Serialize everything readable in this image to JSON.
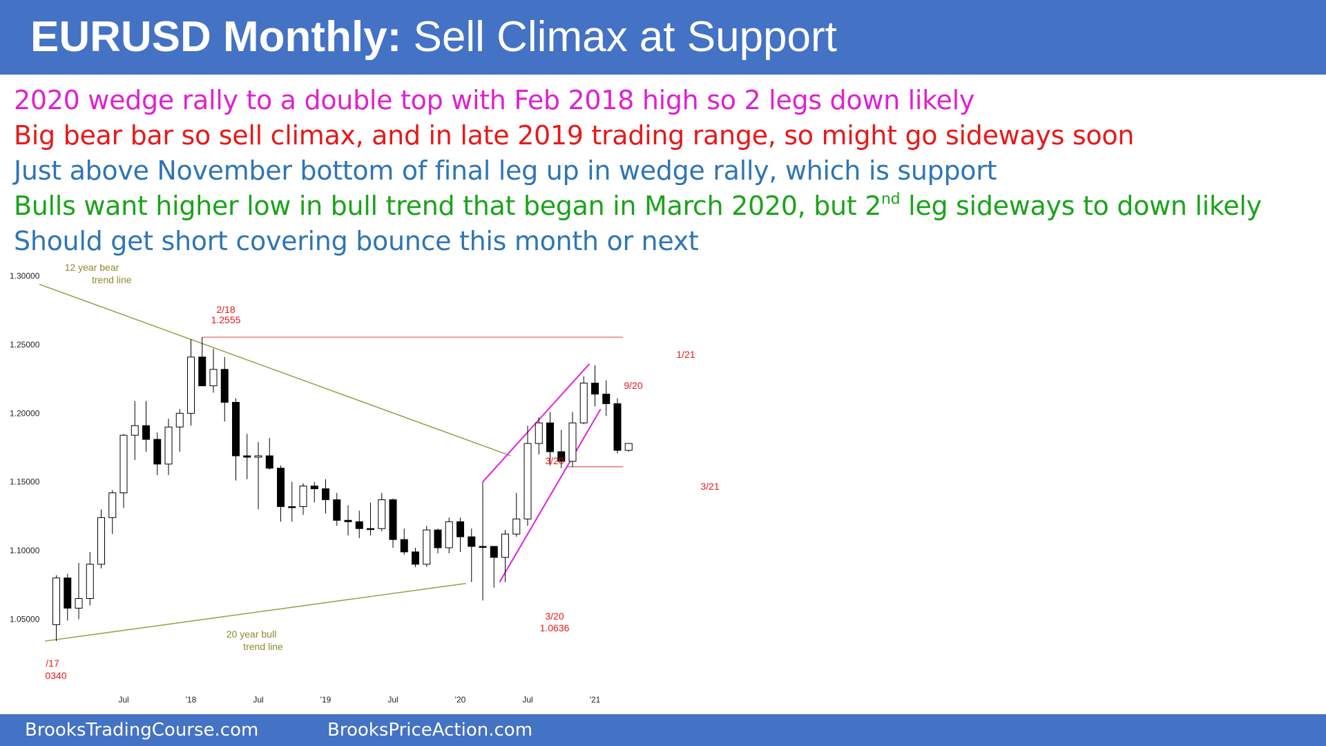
{
  "header": {
    "title_bold": "EURUSD Monthly:",
    "title_rest": " Sell Climax at Support",
    "bg_color": "#4472c4"
  },
  "bullets": [
    {
      "text": "2020 wedge rally to a double top with Feb 2018 high so 2 legs down likely",
      "color": "#e020d0"
    },
    {
      "text": "Big bear bar so sell climax, and in late 2019 trading range, so might go sideways soon",
      "color": "#e81818"
    },
    {
      "text": "Just above November bottom of final leg up in wedge rally, which is support",
      "color": "#2e75b6"
    },
    {
      "pre": "Bulls want higher low in bull trend that began in March 2020, but 2",
      "sup": "nd",
      "post": " leg sideways to down likely",
      "color": "#1aa31a"
    },
    {
      "text": "Should get short covering bounce this month or next",
      "color": "#2e75b6"
    }
  ],
  "footer": {
    "left": "BrooksTradingCourse.com",
    "right": "BrooksPriceAction.com"
  },
  "chart_data": {
    "type": "candlestick",
    "timeframe": "monthly",
    "ylim": [
      1.03,
      1.3
    ],
    "y_ticks": [
      1.3,
      1.25,
      1.2,
      1.15,
      1.1,
      1.05
    ],
    "y_tick_labels": [
      "1.30000",
      "1.25000",
      "1.20000",
      "1.15000",
      "1.10000",
      "1.05000"
    ],
    "x_tick_labels": [
      {
        "label": "Jul",
        "index": 6
      },
      {
        "label": "'18",
        "index": 12
      },
      {
        "label": "Jul",
        "index": 18
      },
      {
        "label": "'19",
        "index": 24
      },
      {
        "label": "Jul",
        "index": 30
      },
      {
        "label": "'20",
        "index": 36
      },
      {
        "label": "Jul",
        "index": 42
      },
      {
        "label": "'21",
        "index": 48
      }
    ],
    "candles": [
      {
        "o": 1.046,
        "h": 1.082,
        "l": 1.034,
        "c": 1.08
      },
      {
        "o": 1.08,
        "h": 1.083,
        "l": 1.049,
        "c": 1.058
      },
      {
        "o": 1.058,
        "h": 1.091,
        "l": 1.05,
        "c": 1.065
      },
      {
        "o": 1.065,
        "h": 1.099,
        "l": 1.06,
        "c": 1.09
      },
      {
        "o": 1.09,
        "h": 1.13,
        "l": 1.087,
        "c": 1.124
      },
      {
        "o": 1.124,
        "h": 1.144,
        "l": 1.112,
        "c": 1.142
      },
      {
        "o": 1.142,
        "h": 1.185,
        "l": 1.131,
        "c": 1.184
      },
      {
        "o": 1.184,
        "h": 1.209,
        "l": 1.166,
        "c": 1.191
      },
      {
        "o": 1.191,
        "h": 1.209,
        "l": 1.172,
        "c": 1.181
      },
      {
        "o": 1.181,
        "h": 1.186,
        "l": 1.155,
        "c": 1.163
      },
      {
        "o": 1.163,
        "h": 1.196,
        "l": 1.155,
        "c": 1.19
      },
      {
        "o": 1.19,
        "h": 1.203,
        "l": 1.172,
        "c": 1.2
      },
      {
        "o": 1.2,
        "h": 1.254,
        "l": 1.191,
        "c": 1.241
      },
      {
        "o": 1.241,
        "h": 1.2555,
        "l": 1.22,
        "c": 1.22
      },
      {
        "o": 1.22,
        "h": 1.247,
        "l": 1.215,
        "c": 1.232
      },
      {
        "o": 1.232,
        "h": 1.241,
        "l": 1.194,
        "c": 1.208
      },
      {
        "o": 1.208,
        "h": 1.211,
        "l": 1.151,
        "c": 1.169
      },
      {
        "o": 1.169,
        "h": 1.185,
        "l": 1.152,
        "c": 1.168
      },
      {
        "o": 1.168,
        "h": 1.179,
        "l": 1.13,
        "c": 1.169
      },
      {
        "o": 1.169,
        "h": 1.182,
        "l": 1.159,
        "c": 1.16
      },
      {
        "o": 1.16,
        "h": 1.162,
        "l": 1.121,
        "c": 1.132
      },
      {
        "o": 1.132,
        "h": 1.15,
        "l": 1.121,
        "c": 1.132
      },
      {
        "o": 1.132,
        "h": 1.149,
        "l": 1.126,
        "c": 1.147
      },
      {
        "o": 1.147,
        "h": 1.15,
        "l": 1.135,
        "c": 1.145
      },
      {
        "o": 1.145,
        "h": 1.152,
        "l": 1.127,
        "c": 1.137
      },
      {
        "o": 1.137,
        "h": 1.142,
        "l": 1.118,
        "c": 1.122
      },
      {
        "o": 1.122,
        "h": 1.133,
        "l": 1.111,
        "c": 1.121
      },
      {
        "o": 1.121,
        "h": 1.129,
        "l": 1.109,
        "c": 1.116
      },
      {
        "o": 1.116,
        "h": 1.135,
        "l": 1.111,
        "c": 1.116
      },
      {
        "o": 1.116,
        "h": 1.142,
        "l": 1.114,
        "c": 1.137
      },
      {
        "o": 1.137,
        "h": 1.138,
        "l": 1.102,
        "c": 1.108
      },
      {
        "o": 1.108,
        "h": 1.116,
        "l": 1.097,
        "c": 1.099
      },
      {
        "o": 1.099,
        "h": 1.102,
        "l": 1.088,
        "c": 1.09
      },
      {
        "o": 1.09,
        "h": 1.118,
        "l": 1.088,
        "c": 1.115
      },
      {
        "o": 1.115,
        "h": 1.116,
        "l": 1.098,
        "c": 1.102
      },
      {
        "o": 1.102,
        "h": 1.124,
        "l": 1.098,
        "c": 1.121
      },
      {
        "o": 1.121,
        "h": 1.124,
        "l": 1.099,
        "c": 1.11
      },
      {
        "o": 1.11,
        "h": 1.116,
        "l": 1.077,
        "c": 1.103
      },
      {
        "o": 1.103,
        "h": 1.15,
        "l": 1.0636,
        "c": 1.103
      },
      {
        "o": 1.103,
        "h": 1.102,
        "l": 1.073,
        "c": 1.095
      },
      {
        "o": 1.095,
        "h": 1.115,
        "l": 1.077,
        "c": 1.112
      },
      {
        "o": 1.112,
        "h": 1.142,
        "l": 1.11,
        "c": 1.123
      },
      {
        "o": 1.123,
        "h": 1.191,
        "l": 1.118,
        "c": 1.178
      },
      {
        "o": 1.178,
        "h": 1.197,
        "l": 1.17,
        "c": 1.193
      },
      {
        "o": 1.193,
        "h": 1.201,
        "l": 1.162,
        "c": 1.172
      },
      {
        "o": 1.172,
        "h": 1.188,
        "l": 1.16,
        "c": 1.165
      },
      {
        "o": 1.165,
        "h": 1.201,
        "l": 1.161,
        "c": 1.193
      },
      {
        "o": 1.193,
        "h": 1.227,
        "l": 1.192,
        "c": 1.222
      },
      {
        "o": 1.222,
        "h": 1.235,
        "l": 1.205,
        "c": 1.214
      },
      {
        "o": 1.214,
        "h": 1.224,
        "l": 1.198,
        "c": 1.207
      },
      {
        "o": 1.207,
        "h": 1.211,
        "l": 1.171,
        "c": 1.173
      },
      {
        "o": 1.173,
        "h": 1.178,
        "l": 1.172,
        "c": 1.178
      }
    ],
    "annotations": [
      {
        "text": "12 year bear",
        "color": "#8a8a2a"
      },
      {
        "text": "trend line",
        "color": "#8a8a2a"
      },
      {
        "text": "2/18",
        "color": "#e81818"
      },
      {
        "text": "1.2555",
        "color": "#e81818"
      },
      {
        "text": "1/21",
        "color": "#e81818"
      },
      {
        "text": "9/20",
        "color": "#e81818"
      },
      {
        "text": "3/20",
        "color": "#e81818"
      },
      {
        "text": "3/21",
        "color": "#e81818"
      },
      {
        "text": "3/20",
        "color": "#e81818"
      },
      {
        "text": "1.0636",
        "color": "#e81818"
      },
      {
        "text": "20 year bull",
        "color": "#8a8a2a"
      },
      {
        "text": "trend line",
        "color": "#8a8a2a"
      },
      {
        "text": "/17",
        "color": "#e81818"
      },
      {
        "text": "0340",
        "color": "#e81818"
      }
    ]
  }
}
